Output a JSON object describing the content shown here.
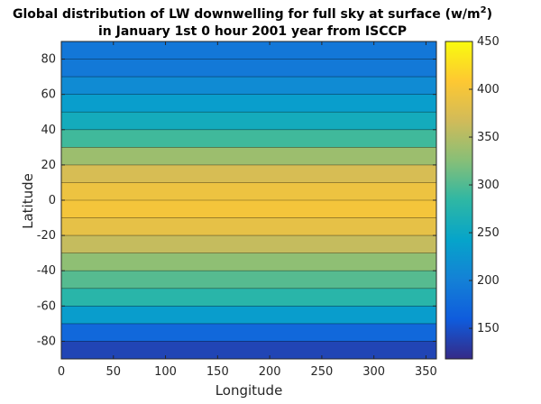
{
  "chart_data": {
    "type": "heatmap",
    "title_line1": "Global distribution of LW downwelling for full sky at surface (w/m",
    "title_unit_exp": "2",
    "title_line1_end": ")",
    "title_line2": "in January 1st 0 hour 2001 year from ISCCP",
    "xlabel": "Longitude",
    "ylabel": "Latitude",
    "xlim": [
      0,
      360
    ],
    "ylim": [
      -90,
      90
    ],
    "x_ticks": [
      0,
      50,
      100,
      150,
      200,
      250,
      300,
      350
    ],
    "y_ticks": [
      -80,
      -60,
      -40,
      -20,
      0,
      20,
      40,
      60,
      80
    ],
    "colorbar": {
      "range": [
        118,
        450
      ],
      "ticks": [
        150,
        200,
        250,
        300,
        350,
        400,
        450
      ],
      "colormap": "parula"
    },
    "grid": false,
    "lat_profile": [
      {
        "lat": 90,
        "value": 195
      },
      {
        "lat": 80,
        "value": 185
      },
      {
        "lat": 70,
        "value": 200
      },
      {
        "lat": 60,
        "value": 225
      },
      {
        "lat": 50,
        "value": 245
      },
      {
        "lat": 40,
        "value": 270
      },
      {
        "lat": 30,
        "value": 315
      },
      {
        "lat": 20,
        "value": 360
      },
      {
        "lat": 10,
        "value": 385
      },
      {
        "lat": 0,
        "value": 400
      },
      {
        "lat": -10,
        "value": 398
      },
      {
        "lat": -20,
        "value": 375
      },
      {
        "lat": -30,
        "value": 345
      },
      {
        "lat": -40,
        "value": 315
      },
      {
        "lat": -50,
        "value": 290
      },
      {
        "lat": -60,
        "value": 268
      },
      {
        "lat": -70,
        "value": 200
      },
      {
        "lat": -80,
        "value": 145
      },
      {
        "lat": -90,
        "value": 135
      }
    ]
  }
}
